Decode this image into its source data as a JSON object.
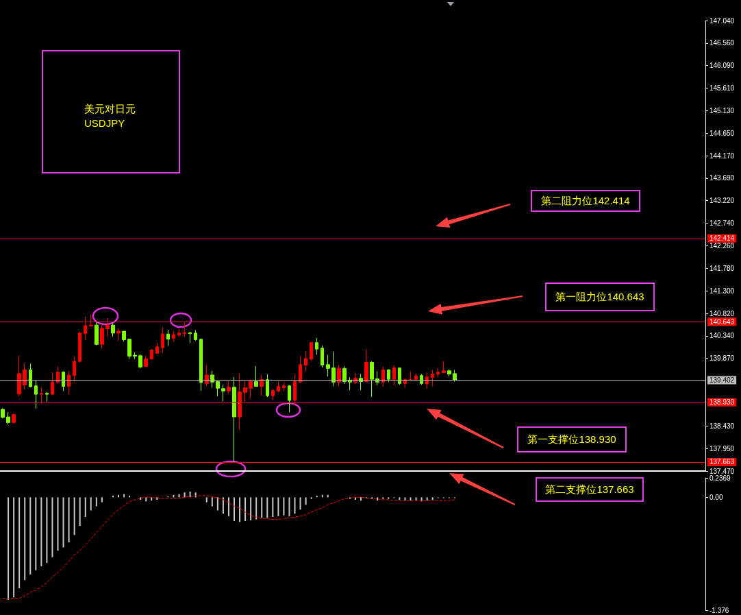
{
  "chart_data": [
    {
      "type": "candlestick",
      "title": "美元对日元",
      "subtitle": "USDJPY",
      "tick_labels": "y",
      "categories": [
        null,
        null,
        null,
        null,
        null,
        null,
        null,
        null,
        null,
        null,
        null,
        null,
        null,
        null,
        null,
        null,
        null,
        null,
        null,
        null,
        null,
        null,
        null,
        null,
        null,
        null,
        null,
        null,
        null,
        null,
        null,
        null,
        null,
        null,
        null,
        null,
        null,
        null,
        null,
        null,
        null,
        null,
        null,
        null,
        null,
        null,
        null,
        null,
        null,
        null,
        null,
        null,
        null,
        null,
        null,
        null,
        null,
        null,
        null,
        null,
        null,
        null,
        null,
        null,
        null,
        null,
        null,
        null,
        null,
        null,
        null,
        null,
        null,
        null,
        null,
        null,
        null,
        null,
        null,
        null,
        null,
        null,
        null,
        null,
        null,
        null,
        null,
        null,
        null,
        null,
        null,
        null,
        null,
        null,
        null,
        null,
        null,
        null,
        null,
        null,
        null,
        null,
        null,
        null,
        null,
        null,
        null,
        null,
        null,
        null,
        null,
        null,
        null,
        null,
        null,
        null,
        null,
        null,
        null,
        null,
        null,
        null,
        null,
        null,
        null,
        null,
        null,
        null
      ],
      "ohlc": [
        [
          138.78,
          138.8,
          138.59,
          138.61
        ],
        [
          138.62,
          138.72,
          138.46,
          138.5
        ],
        [
          138.5,
          138.7,
          138.49,
          138.67
        ],
        [
          139.11,
          139.92,
          139.06,
          139.54
        ],
        [
          139.3,
          139.76,
          139.2,
          139.62
        ],
        [
          139.62,
          139.75,
          139.26,
          139.26
        ],
        [
          139.28,
          139.4,
          138.79,
          139.1
        ],
        [
          139.1,
          139.25,
          138.9,
          139.12
        ],
        [
          139.12,
          139.15,
          138.94,
          139.1
        ],
        [
          139.1,
          139.57,
          139.1,
          139.36
        ],
        [
          139.36,
          139.69,
          139.33,
          139.57
        ],
        [
          139.57,
          139.59,
          139.17,
          139.27
        ],
        [
          139.27,
          139.59,
          139.1,
          139.51
        ],
        [
          139.5,
          139.91,
          139.36,
          139.8
        ],
        [
          139.8,
          140.43,
          139.77,
          140.4
        ],
        [
          140.39,
          140.75,
          140.26,
          140.56
        ],
        [
          140.55,
          140.8,
          140.55,
          140.57
        ],
        [
          140.57,
          140.63,
          140.14,
          140.16
        ],
        [
          140.16,
          140.61,
          140.07,
          140.5
        ],
        [
          140.49,
          140.72,
          140.33,
          140.57
        ],
        [
          140.57,
          140.61,
          140.32,
          140.4
        ],
        [
          140.4,
          140.5,
          140.23,
          140.44
        ],
        [
          140.44,
          140.44,
          140.22,
          140.26
        ],
        [
          140.27,
          140.27,
          139.85,
          139.91
        ],
        [
          139.93,
          139.99,
          139.85,
          139.91
        ],
        [
          139.92,
          139.95,
          139.65,
          139.68
        ],
        [
          139.69,
          139.92,
          139.69,
          139.85
        ],
        [
          139.85,
          140.07,
          139.84,
          140.04
        ],
        [
          139.97,
          140.2,
          139.97,
          140.11
        ],
        [
          140.09,
          140.52,
          139.98,
          140.38
        ],
        [
          140.38,
          140.47,
          140.13,
          140.27
        ],
        [
          140.29,
          140.44,
          140.22,
          140.37
        ],
        [
          140.36,
          140.5,
          140.32,
          140.4
        ],
        [
          140.39,
          140.63,
          140.32,
          140.41
        ],
        [
          140.41,
          140.43,
          140.19,
          140.39
        ],
        [
          140.4,
          140.46,
          140.24,
          140.26
        ],
        [
          140.27,
          140.28,
          139.17,
          139.35
        ],
        [
          139.33,
          139.73,
          139.27,
          139.51
        ],
        [
          139.51,
          139.6,
          139.24,
          139.36
        ],
        [
          139.37,
          139.37,
          139.06,
          139.23
        ],
        [
          139.22,
          139.3,
          138.95,
          139.17
        ],
        [
          139.17,
          139.38,
          139.11,
          139.25
        ],
        [
          139.25,
          139.47,
          137.67,
          138.62
        ],
        [
          138.62,
          139.54,
          138.35,
          139.15
        ],
        [
          139.14,
          139.38,
          138.94,
          139.24
        ],
        [
          139.23,
          139.42,
          139.01,
          139.37
        ],
        [
          139.37,
          139.7,
          139.27,
          139.27
        ],
        [
          139.27,
          139.51,
          139.07,
          139.41
        ],
        [
          139.41,
          139.53,
          139.04,
          139.07
        ],
        [
          139.07,
          139.22,
          138.98,
          139.18
        ],
        [
          139.17,
          139.37,
          139.13,
          139.27
        ],
        [
          139.24,
          139.34,
          139.17,
          139.28
        ],
        [
          139.28,
          139.3,
          138.72,
          138.97
        ],
        [
          138.97,
          139.53,
          138.87,
          139.37
        ],
        [
          139.36,
          139.92,
          139.35,
          139.73
        ],
        [
          139.72,
          140.02,
          139.59,
          139.86
        ],
        [
          139.85,
          140.21,
          139.81,
          140.2
        ],
        [
          140.2,
          140.3,
          139.94,
          140.06
        ],
        [
          140.08,
          140.14,
          139.67,
          139.72
        ],
        [
          139.73,
          139.94,
          139.48,
          139.65
        ],
        [
          139.66,
          140.01,
          139.27,
          139.36
        ],
        [
          139.36,
          139.72,
          139.27,
          139.65
        ],
        [
          139.65,
          139.7,
          139.32,
          139.37
        ],
        [
          139.4,
          139.46,
          139.19,
          139.36
        ],
        [
          139.36,
          139.56,
          139.32,
          139.44
        ],
        [
          139.44,
          139.53,
          139.19,
          139.37
        ],
        [
          139.37,
          140.05,
          139.36,
          139.78
        ],
        [
          139.78,
          139.8,
          139.04,
          139.42
        ],
        [
          139.43,
          139.59,
          139.29,
          139.36
        ],
        [
          139.36,
          139.69,
          139.26,
          139.62
        ],
        [
          139.62,
          139.63,
          139.36,
          139.42
        ],
        [
          139.42,
          139.72,
          139.29,
          139.66
        ],
        [
          139.66,
          139.66,
          139.3,
          139.33
        ],
        [
          139.33,
          139.44,
          139.24,
          139.41
        ],
        [
          139.4,
          139.59,
          139.4,
          139.41
        ],
        [
          139.42,
          139.54,
          139.39,
          139.49
        ],
        [
          139.5,
          139.53,
          139.3,
          139.33
        ],
        [
          139.32,
          139.56,
          139.22,
          139.47
        ],
        [
          139.46,
          139.62,
          139.27,
          139.53
        ],
        [
          139.53,
          139.66,
          139.46,
          139.57
        ],
        [
          139.56,
          139.8,
          139.56,
          139.6
        ],
        [
          139.6,
          139.63,
          139.48,
          139.53
        ],
        [
          139.54,
          139.62,
          139.37,
          139.4
        ],
        null,
        null,
        null,
        null,
        null,
        null,
        null,
        null,
        null,
        null,
        null,
        null,
        null,
        null,
        null,
        null,
        null,
        null,
        null,
        null,
        null,
        null,
        null,
        null,
        null,
        null,
        null,
        null,
        null,
        null,
        null,
        null,
        null,
        null,
        null,
        null,
        null,
        null,
        null,
        null,
        null,
        null,
        null,
        null,
        null
      ],
      "ylim": [
        137.47,
        147.04
      ],
      "yticks": [
        {
          "value": 137.47,
          "label": "137.470"
        },
        {
          "value": 137.95,
          "label": "137.950"
        },
        {
          "value": 138.43,
          "label": "138.430"
        },
        {
          "value": 139.87,
          "label": "139.870"
        },
        {
          "value": 140.34,
          "label": "140.340"
        },
        {
          "value": 140.82,
          "label": "140.820"
        },
        {
          "value": 141.3,
          "label": "141.300"
        },
        {
          "value": 141.78,
          "label": "141.780"
        },
        {
          "value": 142.26,
          "label": "142.260"
        },
        {
          "value": 142.74,
          "label": "142.740"
        },
        {
          "value": 143.22,
          "label": "143.220"
        },
        {
          "value": 143.69,
          "label": "143.690"
        },
        {
          "value": 144.17,
          "label": "144.170"
        },
        {
          "value": 144.65,
          "label": "144.650"
        },
        {
          "value": 145.13,
          "label": "145.130"
        },
        {
          "value": 145.61,
          "label": "145.610"
        },
        {
          "value": 146.09,
          "label": "146.090"
        },
        {
          "value": 146.56,
          "label": "146.560"
        },
        {
          "value": 147.04,
          "label": "147.040"
        }
      ],
      "ref_lines": [
        {
          "axis": "y",
          "value": 142.414,
          "label": "142.414",
          "color": "#ff0000"
        },
        {
          "axis": "y",
          "value": 140.643,
          "label": "140.643",
          "color": "#ff0000"
        },
        {
          "axis": "y",
          "value": 139.402,
          "label": "139.402",
          "color": "#c0c0c0"
        },
        {
          "axis": "y",
          "value": 138.93,
          "label": "138.930",
          "color": "#ff0000"
        },
        {
          "axis": "y",
          "value": 137.663,
          "label": "137.663",
          "color": "#ff0000"
        }
      ],
      "annotations": [
        "第二阻力位142.414",
        "第一阻力位140.643",
        "第一支撑位138.930",
        "第二支撑位137.663"
      ]
    },
    {
      "type": "bar",
      "tick_labels": "y",
      "categories": [
        null,
        null,
        null,
        null,
        null,
        null,
        null,
        null,
        null,
        null,
        null,
        null,
        null,
        null,
        null,
        null,
        null,
        null,
        null,
        null,
        null,
        null,
        null,
        null,
        null,
        null,
        null,
        null,
        null,
        null,
        null,
        null,
        null,
        null,
        null,
        null,
        null,
        null,
        null,
        null,
        null,
        null,
        null,
        null,
        null,
        null,
        null,
        null,
        null,
        null,
        null,
        null,
        null,
        null,
        null,
        null,
        null,
        null,
        null,
        null,
        null,
        null,
        null,
        null,
        null,
        null,
        null,
        null,
        null,
        null,
        null,
        null,
        null,
        null,
        null,
        null,
        null,
        null,
        null,
        null,
        null,
        null,
        null,
        null,
        null,
        null,
        null,
        null,
        null,
        null,
        null,
        null,
        null,
        null,
        null,
        null,
        null,
        null,
        null,
        null,
        null,
        null,
        null,
        null,
        null,
        null,
        null,
        null,
        null,
        null,
        null,
        null,
        null,
        null,
        null,
        null,
        null,
        null,
        null,
        null,
        null,
        null,
        null,
        null,
        null,
        null,
        null,
        null
      ],
      "ylim": [
        -1.376,
        0.2369
      ],
      "yticks": [
        {
          "value": 0.2369,
          "label": "0.2369"
        },
        {
          "value": 0,
          "label": "0.00"
        },
        {
          "value": -1.376,
          "label": "-1.376"
        }
      ],
      "series": [
        {
          "type": "bar",
          "color": "#c8c8c8",
          "values": [
            null,
            -1.25,
            -1.22,
            -1.11,
            -1.01,
            -0.94,
            -0.89,
            -0.84,
            -0.8,
            -0.73,
            -0.65,
            -0.61,
            -0.55,
            -0.46,
            -0.35,
            -0.24,
            -0.16,
            -0.11,
            -0.06,
            0,
            0.02,
            0.03,
            0.04,
            0.02,
            0,
            -0.03,
            -0.05,
            -0.04,
            -0.03,
            0,
            0.01,
            0.03,
            0.04,
            0.06,
            0.07,
            0.06,
            0,
            -0.06,
            -0.11,
            -0.16,
            -0.2,
            -0.23,
            -0.29,
            -0.3,
            -0.29,
            -0.28,
            -0.27,
            -0.25,
            -0.25,
            -0.24,
            -0.23,
            -0.22,
            -0.23,
            -0.2,
            -0.15,
            -0.09,
            -0.02,
            0.02,
            0.03,
            0.03,
            0,
            0,
            0,
            -0.02,
            -0.03,
            -0.04,
            -0.01,
            -0.02,
            -0.04,
            -0.02,
            -0.02,
            -0.01,
            -0.03,
            -0.04,
            -0.04,
            -0.04,
            -0.05,
            -0.04,
            -0.03,
            -0.01,
            -0.01,
            -0.01,
            -0.01,
            null,
            null,
            null,
            null,
            null,
            null,
            null,
            null,
            null,
            null,
            null,
            null,
            null,
            null,
            null,
            null,
            null,
            null,
            null,
            null,
            null,
            null,
            null,
            null,
            null,
            null,
            null,
            null,
            null,
            null,
            null,
            null,
            null,
            null,
            null,
            null,
            null,
            null,
            null,
            null,
            null,
            null,
            null,
            null,
            null
          ]
        },
        {
          "type": "line",
          "color": "#ff0000",
          "line_style": "dashed",
          "values": [
            -1.23,
            -1.23,
            -1.23,
            -1.23,
            -1.2,
            -1.16,
            -1.13,
            -1.09,
            -1.04,
            -0.97,
            -0.92,
            -0.85,
            -0.78,
            -0.7,
            -0.65,
            -0.58,
            -0.51,
            -0.43,
            -0.36,
            -0.28,
            -0.21,
            -0.15,
            -0.1,
            -0.05,
            -0.03,
            -0.01,
            0,
            0,
            -0.01,
            -0.01,
            -0.01,
            -0.01,
            -0.01,
            0,
            0.01,
            0.02,
            0.02,
            0.02,
            0.01,
            -0.01,
            -0.03,
            -0.06,
            -0.11,
            -0.13,
            -0.18,
            -0.22,
            -0.24,
            -0.26,
            -0.26,
            -0.27,
            -0.27,
            -0.26,
            -0.25,
            -0.24,
            -0.23,
            -0.21,
            -0.18,
            -0.15,
            -0.13,
            -0.09,
            -0.07,
            -0.04,
            -0.02,
            -0.01,
            0,
            0,
            -0.01,
            -0.02,
            -0.02,
            -0.03,
            -0.03,
            -0.04,
            -0.04,
            -0.04,
            -0.04,
            -0.04,
            -0.04,
            -0.04,
            -0.04,
            -0.04,
            -0.04,
            -0.04,
            -0.03,
            null,
            null,
            null,
            null,
            null,
            null,
            null,
            null,
            null,
            null,
            null,
            null,
            null,
            null,
            null,
            null,
            null,
            null,
            null,
            null,
            null,
            null,
            null,
            null,
            null,
            null,
            null,
            null,
            null,
            null,
            null,
            null,
            null,
            null,
            null,
            null,
            null,
            null,
            null,
            null,
            null,
            null,
            null,
            null,
            null
          ]
        }
      ]
    }
  ]
}
